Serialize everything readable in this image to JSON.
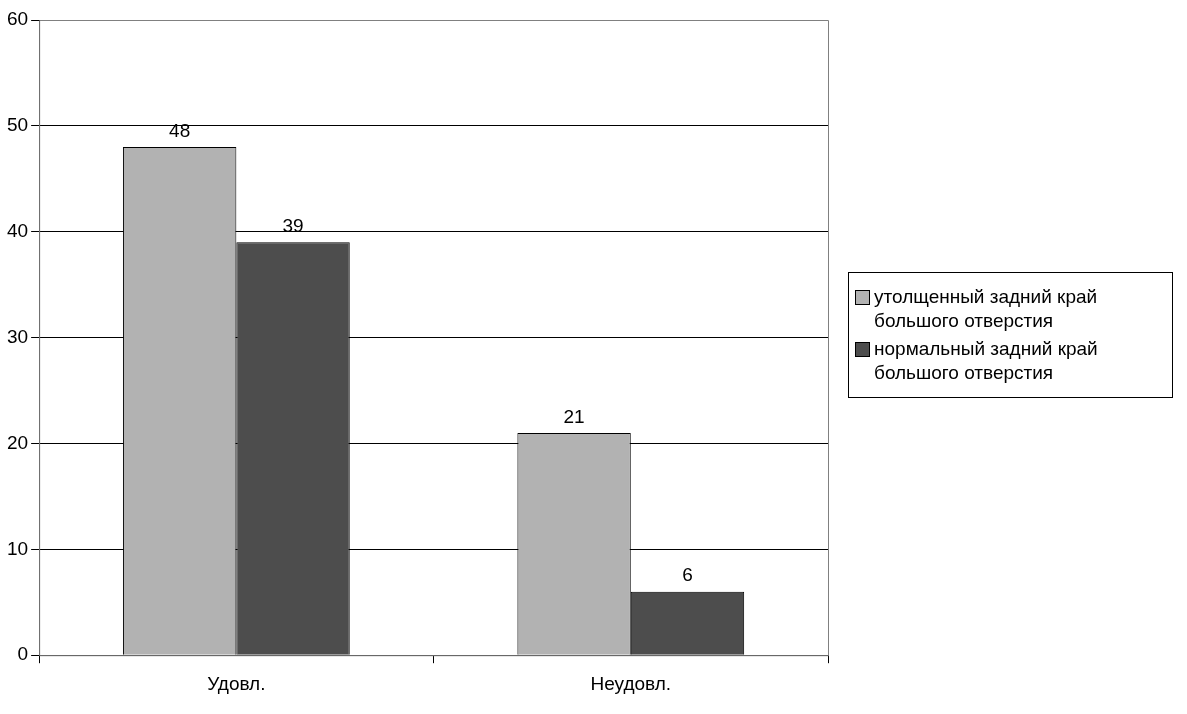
{
  "chart_data": {
    "type": "bar",
    "categories": [
      "Удовл.",
      "Неудовл."
    ],
    "series": [
      {
        "name": "утолщенный задний край большого отверстия",
        "color": "#b2b2b2",
        "values": [
          48,
          21
        ]
      },
      {
        "name": "нормальный задний край большого отверстия",
        "color": "#4d4d4d",
        "values": [
          39,
          6
        ]
      }
    ],
    "ylim": [
      0,
      60
    ],
    "yticks": [
      0,
      10,
      20,
      30,
      40,
      50,
      60
    ],
    "grid": "y",
    "legend": "right",
    "data_labels": true
  }
}
